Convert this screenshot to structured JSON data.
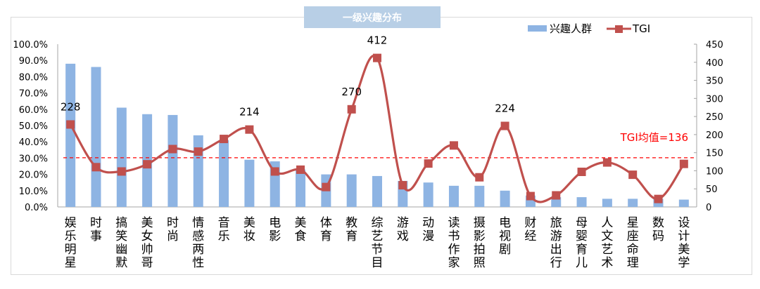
{
  "chart_data": {
    "type": "bar",
    "title": "一级兴趣分布",
    "xlabel": "",
    "ylabel": "",
    "categories": [
      "娱乐明星",
      "时事",
      "搞笑幽默",
      "美女帅哥",
      "时尚",
      "情感两性",
      "音乐",
      "美妆",
      "电影",
      "美食",
      "体育",
      "教育",
      "综艺节目",
      "游戏",
      "动漫",
      "读书作家",
      "摄影拍照",
      "电视剧",
      "财经",
      "旅游出行",
      "母婴育儿",
      "人文艺术",
      "星座命理",
      "数码",
      "设计美学"
    ],
    "series": [
      {
        "name": "兴趣人群",
        "type": "bar",
        "axis": "left",
        "unit": "%",
        "color": "#8eb4e3",
        "values": [
          88.0,
          86.0,
          61.0,
          57.0,
          56.5,
          44.0,
          41.0,
          29.0,
          28.0,
          23.0,
          20.0,
          20.0,
          19.0,
          16.0,
          15.0,
          13.0,
          13.0,
          10.0,
          7.0,
          6.0,
          6.0,
          5.0,
          5.0,
          5.0,
          4.5
        ]
      },
      {
        "name": "TGI",
        "type": "line",
        "axis": "right",
        "smooth": true,
        "marker": "square",
        "color": "#c0504d",
        "values": [
          228,
          110,
          98,
          118,
          160,
          153,
          188,
          214,
          98,
          103,
          55,
          270,
          412,
          60,
          120,
          170,
          82,
          224,
          30,
          32,
          97,
          123,
          89,
          22,
          119
        ]
      }
    ],
    "data_labels": [
      {
        "category": "娱乐明星",
        "value": 228
      },
      {
        "category": "美妆",
        "value": 214
      },
      {
        "category": "教育",
        "value": 270
      },
      {
        "category": "综艺节目",
        "value": 412
      },
      {
        "category": "电视剧",
        "value": 224
      }
    ],
    "reference_line": {
      "label": "TGI均值=136",
      "value": 136,
      "axis": "right",
      "style": "dashed",
      "color": "#ff0000"
    },
    "left_axis": {
      "ylim": [
        0,
        100
      ],
      "ticks": [
        "0.0%",
        "10.0%",
        "20.0%",
        "30.0%",
        "40.0%",
        "50.0%",
        "60.0%",
        "70.0%",
        "80.0%",
        "90.0%",
        "100.0%"
      ]
    },
    "right_axis": {
      "ylim": [
        0,
        450
      ],
      "ticks": [
        "0",
        "50",
        "100",
        "150",
        "200",
        "250",
        "300",
        "350",
        "400",
        "450"
      ]
    },
    "legend": {
      "position": "top-right",
      "entries": [
        "兴趣人群",
        "TGI"
      ]
    },
    "grid": false
  }
}
